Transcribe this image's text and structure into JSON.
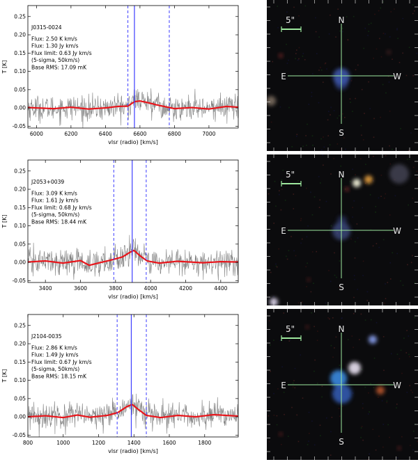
{
  "chart_data": [
    {
      "type": "line",
      "source": "J0315-0024",
      "annotation": [
        "J0315-0024",
        "Flux: 2.50 K km/s",
        "Flux: 1.30 Jy km/s",
        "Flux limit: 0.63 Jy km/s",
        "(5-sigma, 50km/s)",
        "Base RMS: 17.09 mK"
      ],
      "xlabel": "vlsr (radio) [km/s]",
      "ylabel": "T [K]",
      "xlim": [
        5950,
        7170
      ],
      "ylim": [
        -0.055,
        0.28
      ],
      "xticks": [
        6000,
        6200,
        6400,
        6600,
        6800,
        7000
      ],
      "yticks": [
        -0.05,
        0.0,
        0.05,
        0.1,
        0.15,
        0.2,
        0.25
      ],
      "ytick_labels": [
        "-0.05",
        "0.00",
        "0.05",
        "0.10",
        "0.15",
        "0.20",
        "0.25"
      ],
      "center_velocity": 6568,
      "window_velocities": [
        6530,
        6770
      ],
      "noise_rms": 0.017,
      "series": [
        {
          "values_type": "smoothed",
          "color": "#e8151b",
          "x": [
            5950,
            6100,
            6200,
            6300,
            6400,
            6470,
            6530,
            6568,
            6600,
            6650,
            6700,
            6750,
            6800,
            6900,
            7000,
            7100,
            7170
          ],
          "y": [
            0.001,
            -0.002,
            0.002,
            -0.003,
            0.0,
            0.004,
            0.005,
            0.017,
            0.019,
            0.014,
            0.008,
            0.003,
            -0.002,
            0.001,
            -0.003,
            0.004,
            0.002
          ]
        }
      ]
    },
    {
      "type": "line",
      "source": "J2053+0039",
      "annotation": [
        "J2053+0039",
        "Flux: 3.09 K km/s",
        "Flux: 1.61 Jy km/s",
        "Flux limit: 0.68 Jy km/s",
        "(5-sigma, 50km/s)",
        "Base RMS: 18.44 mK"
      ],
      "xlabel": "vlsr (radio) [km/s]",
      "ylabel": "T [K]",
      "xlim": [
        3300,
        4500
      ],
      "ylim": [
        -0.055,
        0.28
      ],
      "xticks": [
        3400,
        3600,
        3800,
        4000,
        4200,
        4400
      ],
      "yticks": [
        -0.05,
        0.0,
        0.05,
        0.1,
        0.15,
        0.2,
        0.25
      ],
      "ytick_labels": [
        "-0.05",
        "0.00",
        "0.05",
        "0.10",
        "0.15",
        "0.20",
        "0.25"
      ],
      "center_velocity": 3895,
      "window_velocities": [
        3790,
        3975
      ],
      "noise_rms": 0.018,
      "series": [
        {
          "values_type": "smoothed",
          "color": "#e8151b",
          "x": [
            3300,
            3400,
            3500,
            3600,
            3650,
            3700,
            3780,
            3840,
            3880,
            3905,
            3940,
            3980,
            4050,
            4150,
            4300,
            4400,
            4500
          ],
          "y": [
            0.001,
            0.004,
            -0.002,
            0.005,
            -0.008,
            -0.002,
            0.007,
            0.015,
            0.027,
            0.033,
            0.018,
            0.004,
            -0.002,
            0.003,
            -0.001,
            0.002,
            0.001
          ]
        }
      ]
    },
    {
      "type": "line",
      "source": "J2104-0035",
      "annotation": [
        "J2104-0035",
        "Flux: 2.86 K km/s",
        "Flux: 1.49 Jy km/s",
        "Flux limit: 0.67 Jy km/s",
        "(5-sigma, 50km/s)",
        "Base RMS: 18.15 mK"
      ],
      "xlabel": "vlsr (radio) [km/s]",
      "ylabel": "T [K]",
      "xlim": [
        800,
        1990
      ],
      "ylim": [
        -0.055,
        0.28
      ],
      "xticks": [
        800,
        1000,
        1200,
        1400,
        1600,
        1800
      ],
      "yticks": [
        -0.05,
        0.0,
        0.05,
        0.1,
        0.15,
        0.2,
        0.25
      ],
      "ytick_labels": [
        "-0.05",
        "0.00",
        "0.05",
        "0.10",
        "0.15",
        "0.20",
        "0.25"
      ],
      "center_velocity": 1385,
      "window_velocities": [
        1305,
        1470
      ],
      "noise_rms": 0.018,
      "series": [
        {
          "values_type": "smoothed",
          "color": "#e8151b",
          "x": [
            800,
            900,
            1000,
            1080,
            1150,
            1250,
            1310,
            1360,
            1390,
            1420,
            1470,
            1550,
            1650,
            1750,
            1850,
            1990
          ],
          "y": [
            0.0,
            0.003,
            -0.002,
            0.005,
            -0.001,
            0.004,
            0.012,
            0.028,
            0.034,
            0.022,
            0.004,
            -0.002,
            0.004,
            0.0,
            0.006,
            0.002
          ]
        }
      ]
    }
  ],
  "sky_images": [
    {
      "scale_label": "5\"",
      "compass": {
        "n": "N",
        "e": "E",
        "w": "W",
        "s": "S"
      }
    },
    {
      "scale_label": "5\"",
      "compass": {
        "n": "N",
        "e": "E",
        "w": "W",
        "s": "S"
      }
    },
    {
      "scale_label": "5\"",
      "compass": {
        "n": "N",
        "e": "E",
        "w": "W",
        "s": "S"
      }
    }
  ],
  "colors": {
    "spectrum": "#808080",
    "smoothed": "#e8151b",
    "marker": "#3d3dff",
    "crosshair": "#9ee89e",
    "sky_background": "#0b0b0d"
  }
}
